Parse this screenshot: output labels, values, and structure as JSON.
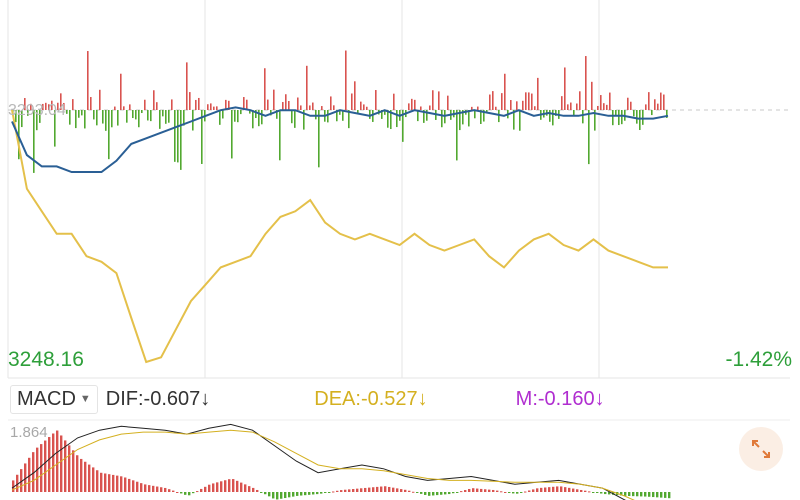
{
  "labels": {
    "price_top": "3293.04",
    "price_low": "3248.16",
    "pct_change": "-1.42%",
    "macd_max": "1.864"
  },
  "macd_bar": {
    "selector": "MACD",
    "dif": "DIF:-0.607",
    "dea": "DEA:-0.527",
    "m": "M:-0.160",
    "down_arrow": "↓"
  },
  "icons": {
    "expand": "expand-arrows-icon",
    "dropdown": "triangle-down-icon"
  },
  "colors": {
    "up": "#d9534f",
    "down": "#52a830",
    "index_line": "#e4c04a",
    "strength_line": "#2a5f95",
    "dif": "#222222",
    "dea": "#d4b020",
    "m": "#b02ed0",
    "grid": "#e6e6e6"
  },
  "chart_data": {
    "type": "line",
    "intraday": {
      "yrange": [
        3248.16,
        3293.04
      ],
      "ref_price": 3293.04,
      "index_price": [
        3293.04,
        3279,
        3275,
        3271,
        3271,
        3267,
        3266,
        3264,
        3256,
        3248.16,
        3249,
        3254,
        3259,
        3262,
        3265,
        3266,
        3267,
        3271,
        3274,
        3275,
        3277,
        3273,
        3271,
        3270,
        3271,
        3270,
        3269,
        3271,
        3269,
        3268,
        3269,
        3270,
        3267,
        3265,
        3268,
        3270,
        3271,
        3269,
        3268,
        3270,
        3268,
        3267,
        3266,
        3265,
        3265
      ],
      "strength_line": [
        3291,
        3285,
        3283,
        3283,
        3282,
        3282,
        3282,
        3284,
        3287,
        3288,
        3289,
        3290,
        3291,
        3292,
        3293,
        3293.5,
        3293,
        3292,
        3293,
        3293,
        3292,
        3292,
        3293,
        3292.5,
        3292,
        3293,
        3292,
        3293,
        3292.5,
        3292,
        3292.5,
        3293,
        3292.5,
        3292,
        3293,
        3292,
        3292.5,
        3292,
        3292,
        3292.5,
        3292,
        3292,
        3291.5,
        3291.5,
        3292
      ]
    },
    "macd": {
      "ymax": 1.864,
      "dif": [
        0.1,
        0.5,
        1.0,
        1.4,
        1.6,
        1.7,
        1.65,
        1.6,
        1.5,
        1.65,
        1.75,
        1.6,
        1.2,
        0.8,
        0.5,
        0.6,
        0.7,
        0.6,
        0.4,
        0.3,
        0.35,
        0.4,
        0.3,
        0.2,
        0.25,
        0.3,
        0.2,
        0.1,
        -0.2,
        -0.5,
        -0.607
      ],
      "dea": [
        0.05,
        0.3,
        0.7,
        1.1,
        1.35,
        1.5,
        1.55,
        1.55,
        1.5,
        1.55,
        1.6,
        1.55,
        1.3,
        1.0,
        0.7,
        0.6,
        0.6,
        0.55,
        0.45,
        0.35,
        0.3,
        0.3,
        0.28,
        0.25,
        0.25,
        0.25,
        0.2,
        0.1,
        -0.1,
        -0.35,
        -0.527
      ],
      "m": [
        0.3,
        1.1,
        1.6,
        0.9,
        0.5,
        0.4,
        0.2,
        0.1,
        -0.1,
        0.2,
        0.35,
        0.1,
        -0.2,
        -0.1,
        -0.05,
        0.05,
        0.1,
        0.15,
        0.05,
        -0.1,
        -0.05,
        0.1,
        0.05,
        -0.05,
        0.1,
        0.15,
        0.05,
        -0.05,
        -0.1,
        -0.12,
        -0.16
      ]
    }
  }
}
